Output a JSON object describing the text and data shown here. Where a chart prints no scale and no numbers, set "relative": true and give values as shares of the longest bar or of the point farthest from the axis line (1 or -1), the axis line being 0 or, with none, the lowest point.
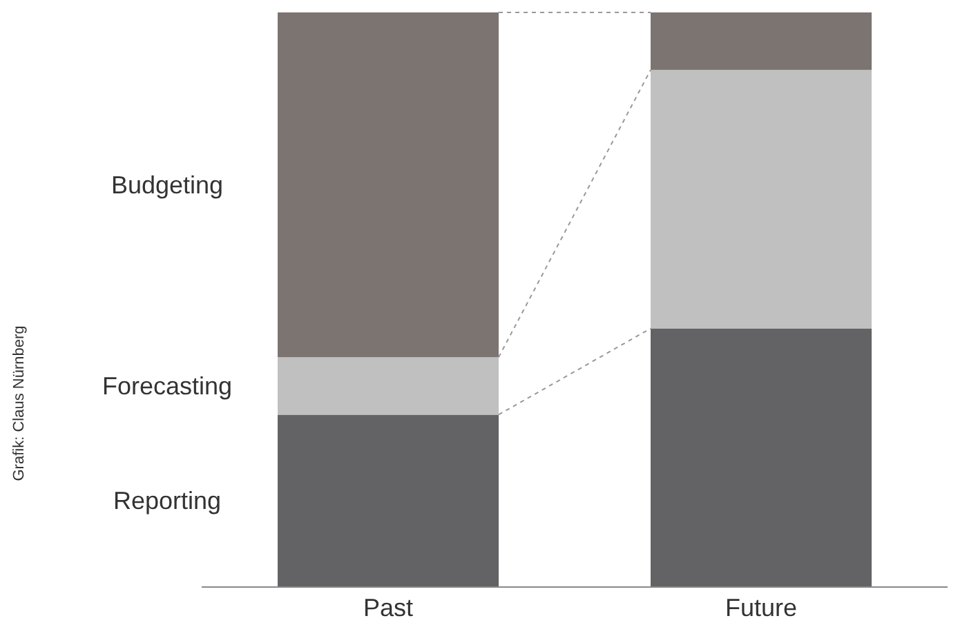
{
  "chart_data": {
    "type": "bar",
    "stacked": true,
    "relative": true,
    "legend": false,
    "grid": false,
    "categories": [
      "Past",
      "Future"
    ],
    "series": [
      {
        "name": "Reporting",
        "color": "#636366",
        "values": [
          0.3,
          0.45
        ]
      },
      {
        "name": "Forecasting",
        "color": "#c0c0c0",
        "values": [
          0.1,
          0.45
        ]
      },
      {
        "name": "Budgeting",
        "color": "#7b7470",
        "values": [
          0.6,
          0.1
        ]
      }
    ],
    "annotations": [
      "Grafik: Claus Nürnberg"
    ]
  }
}
